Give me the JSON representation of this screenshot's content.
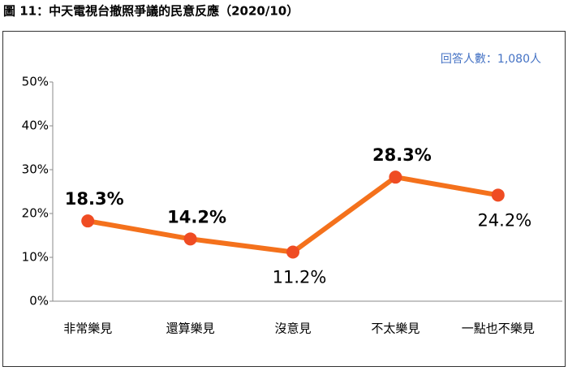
{
  "chart_data": {
    "type": "line",
    "title": "圖 11：中天電視台撤照爭議的民意反應（2020/10）",
    "annotation": "回答人數：1,080人",
    "categories": [
      "非常樂見",
      "還算樂見",
      "沒意見",
      "不太樂見",
      "一點也不樂見"
    ],
    "values": [
      18.3,
      14.2,
      11.2,
      28.3,
      24.2
    ],
    "value_labels": [
      "18.3%",
      "14.2%",
      "11.2%",
      "28.3%",
      "24.2%"
    ],
    "color": "#f4711c",
    "marker_color": "#ef4c23",
    "ylim": [
      0,
      50
    ],
    "yticks": [
      {
        "value": 0,
        "label": "0%"
      },
      {
        "value": 10,
        "label": "10%"
      },
      {
        "value": 20,
        "label": "20%"
      },
      {
        "value": 30,
        "label": "30%"
      },
      {
        "value": 40,
        "label": "40%"
      },
      {
        "value": 50,
        "label": "50%"
      }
    ],
    "grid": false
  }
}
